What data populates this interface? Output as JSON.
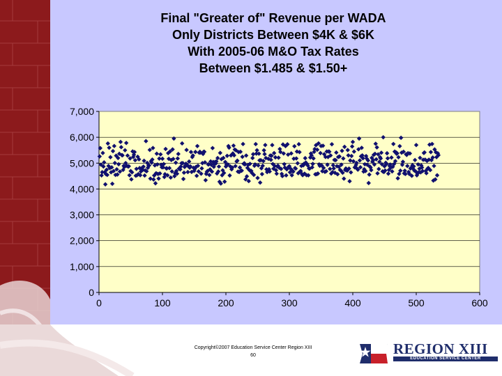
{
  "colors": {
    "accent_red": "#8c1a1c",
    "panel_bg": "#c8c8ff",
    "plot_bg": "#ffffc8",
    "marker": "#10106e",
    "logo_navy": "#1f2d6b"
  },
  "chart_data": {
    "type": "scatter",
    "title_lines": [
      "Final \"Greater of\" Revenue per WADA",
      "Only Districts Between $4K & $6K",
      "With 2005-06 M&O Tax Rates",
      "Between $1.485 & $1.50+"
    ],
    "xlabel": "",
    "ylabel": "",
    "xlim": [
      0,
      600
    ],
    "ylim": [
      0,
      7000
    ],
    "x_ticks": [
      0,
      100,
      200,
      300,
      400,
      500,
      600
    ],
    "x_tick_labels": [
      "0",
      "100",
      "200",
      "300",
      "400",
      "500",
      "600"
    ],
    "y_ticks": [
      0,
      1000,
      2000,
      3000,
      4000,
      5000,
      6000,
      7000
    ],
    "y_tick_labels": [
      "0",
      "1,000",
      "2,000",
      "3,000",
      "4,000",
      "5,000",
      "6,000",
      "7,000"
    ],
    "grid": "horizontal",
    "legend": "none",
    "marker": "diamond",
    "point_count": 535,
    "x_range": [
      1,
      535
    ],
    "typical_band": [
      4500,
      5000
    ],
    "y_min": 4200,
    "y_max": 6000,
    "sample_points": [
      [
        2,
        5580
      ],
      [
        10,
        4180
      ],
      [
        34,
        5820
      ],
      [
        74,
        5850
      ],
      [
        118,
        5950
      ],
      [
        124,
        5180
      ],
      [
        190,
        4280
      ],
      [
        205,
        5600
      ],
      [
        262,
        5700
      ],
      [
        395,
        4300
      ],
      [
        400,
        5820
      ],
      [
        410,
        5950
      ],
      [
        425,
        4230
      ],
      [
        448,
        6000
      ],
      [
        476,
        5980
      ],
      [
        500,
        5700
      ],
      [
        525,
        5740
      ],
      [
        533,
        4530
      ]
    ]
  },
  "footer": {
    "copyright": "Copyright©2007 Education Service Center Region XIII",
    "page_number": "60"
  },
  "logo": {
    "title": "REGION XIII",
    "subtitle": "EDUCATION SERVICE CENTER"
  }
}
